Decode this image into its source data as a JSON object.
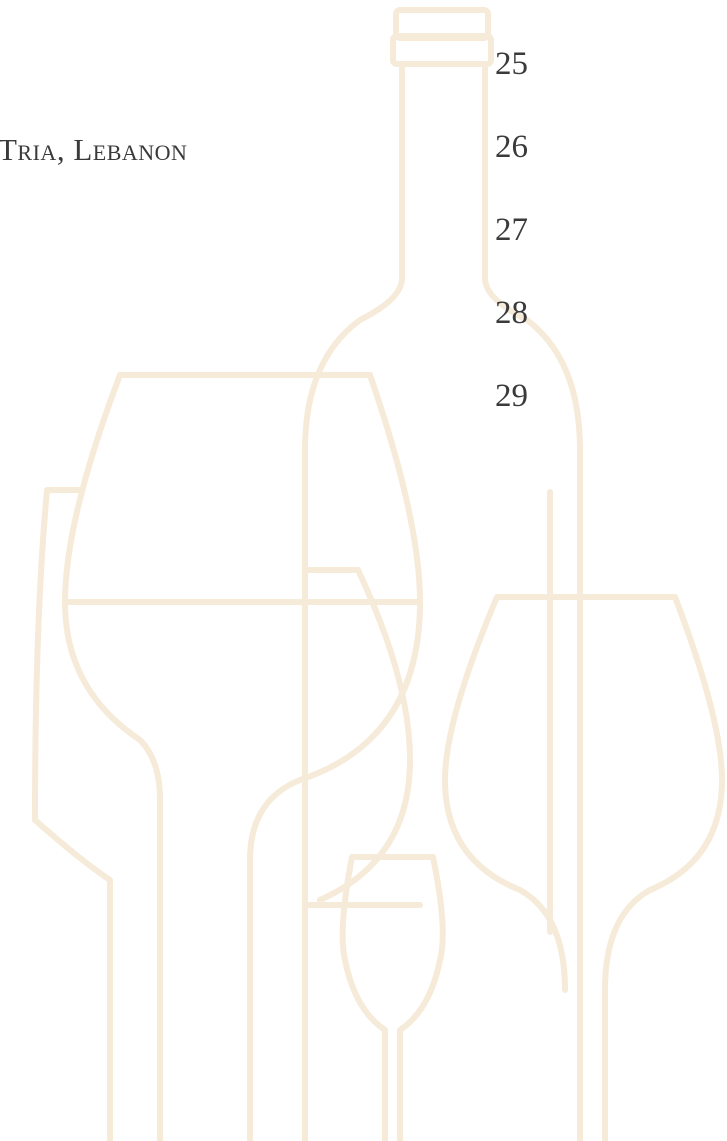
{
  "entry": {
    "text": "Tria, Lebanon"
  },
  "page_numbers": [
    25,
    26,
    27,
    28,
    29
  ]
}
